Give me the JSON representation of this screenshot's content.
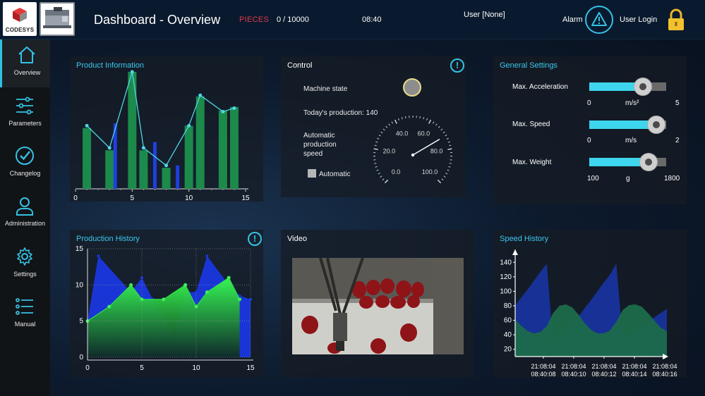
{
  "header": {
    "logo_text": "CODESYS",
    "title": "Dashboard - Overview",
    "pieces_label": "PIECES",
    "pieces_value": "0 / 10000",
    "time": "08:40",
    "user": "User [None]",
    "alarm_label": "Alarm",
    "login_label": "User Login"
  },
  "sidebar": {
    "items": [
      {
        "label": "Overview",
        "icon": "home-icon",
        "active": true
      },
      {
        "label": "Parameters",
        "icon": "sliders-icon"
      },
      {
        "label": "Changelog",
        "icon": "check-circle-icon"
      },
      {
        "label": "Administration",
        "icon": "user-icon"
      },
      {
        "label": "Settings",
        "icon": "gear-icon"
      },
      {
        "label": "Manual",
        "icon": "list-icon"
      }
    ]
  },
  "product_info": {
    "title": "Product Information",
    "chart_data": {
      "type": "bar",
      "x_ticks": [
        "0",
        "5",
        "10",
        "15"
      ],
      "xlim": [
        0,
        15
      ],
      "ylim": [
        0,
        10
      ],
      "series": [
        {
          "kind": "bar",
          "color": "#1c8a4a",
          "x": [
            1,
            3,
            5,
            6,
            8,
            10,
            11,
            13,
            14
          ],
          "values": [
            5.2,
            3.3,
            10.0,
            3.3,
            1.8,
            5.4,
            7.9,
            6.7,
            7.0
          ]
        },
        {
          "kind": "bar",
          "color": "#1d3fe0",
          "x": [
            3.5,
            7,
            9
          ],
          "values": [
            5.6,
            4.0,
            2.0
          ]
        },
        {
          "kind": "line",
          "color": "#4fd6e6",
          "x": [
            1,
            3,
            5,
            6,
            8,
            10,
            11,
            13,
            14
          ],
          "values": [
            5.4,
            3.5,
            10.0,
            3.5,
            2.0,
            5.4,
            8.0,
            6.6,
            6.9
          ]
        }
      ]
    }
  },
  "control": {
    "title": "Control",
    "machine_state_label": "Machine state",
    "todays_production": "Today's production: 140",
    "auto_speed_label": [
      "Automatic",
      "production",
      "speed"
    ],
    "automatic_checkbox_label": "Automatic",
    "gauge": {
      "labels": [
        "0.0",
        "20.0",
        "40.0",
        "60.0",
        "80.0",
        "100.0"
      ],
      "min": 0,
      "max": 100,
      "value": 72
    }
  },
  "general_settings": {
    "title": "General Settings",
    "sliders": [
      {
        "name": "Max. Acceleration",
        "min": "0",
        "unit": "m/s²",
        "max": "5",
        "fraction": 0.7
      },
      {
        "name": "Max. Speed",
        "min": "0",
        "unit": "m/s",
        "max": "2",
        "fraction": 0.87
      },
      {
        "name": "Max. Weight",
        "min": "100",
        "unit": "g",
        "max": "1800",
        "fraction": 0.77
      }
    ]
  },
  "production_history": {
    "title": "Production History",
    "chart_data": {
      "type": "area",
      "x_ticks": [
        "0",
        "5",
        "10",
        "15"
      ],
      "y_ticks": [
        "0",
        "5",
        "10",
        "15"
      ],
      "xlim": [
        0,
        15
      ],
      "ylim": [
        0,
        15
      ],
      "grid": true,
      "series": [
        {
          "color": "#1a35d6",
          "x": [
            0,
            1,
            4,
            5,
            6,
            8,
            9,
            10,
            11,
            13,
            14,
            15
          ],
          "values": [
            5,
            14,
            9,
            11,
            8,
            3,
            9,
            9,
            14,
            10,
            8.5,
            8
          ]
        },
        {
          "color": "#2fe04a",
          "x": [
            0,
            2,
            4,
            5,
            7,
            9,
            10,
            11,
            13,
            14
          ],
          "values": [
            5,
            7,
            10,
            8,
            8,
            10,
            7,
            9,
            11,
            8
          ]
        }
      ]
    }
  },
  "video": {
    "title": "Video"
  },
  "speed_history": {
    "title": "Speed History",
    "chart_data": {
      "type": "area",
      "y_ticks": [
        "20",
        "40",
        "60",
        "80",
        "100",
        "120",
        "140"
      ],
      "ylim": [
        10,
        150
      ],
      "x_labels": [
        [
          "21:08:04",
          "08:40:08"
        ],
        [
          "21:08:04",
          "08:40:10"
        ],
        [
          "21:08:04",
          "08:40:12"
        ],
        [
          "21:08:04",
          "08:40:14"
        ],
        [
          "21:08:04",
          "08:40:16"
        ]
      ],
      "series": [
        {
          "color": "#17339c",
          "x": [
            0,
            1,
            2,
            3,
            4,
            5,
            6,
            7,
            8,
            9,
            10,
            11,
            12,
            13,
            14,
            15,
            16,
            17,
            18,
            19,
            20,
            21,
            22,
            23,
            24
          ],
          "values": [
            80,
            92,
            103,
            115,
            127,
            138,
            29,
            38,
            47,
            56,
            65,
            77,
            88,
            100,
            112,
            123,
            138,
            35,
            40,
            46,
            52,
            58,
            64,
            70,
            76
          ]
        },
        {
          "color": "#1c6b4a",
          "x": [
            0,
            1,
            2,
            3,
            4,
            5,
            6,
            7,
            8,
            9,
            10,
            11,
            12,
            13,
            14,
            15,
            16,
            17,
            18,
            19,
            20,
            21,
            22,
            23,
            24
          ],
          "values": [
            61,
            52,
            45,
            42,
            44,
            52,
            70,
            80,
            82,
            78,
            68,
            56,
            47,
            42,
            42,
            46,
            58,
            74,
            81,
            82,
            79,
            70,
            60,
            50,
            45
          ]
        }
      ]
    }
  }
}
